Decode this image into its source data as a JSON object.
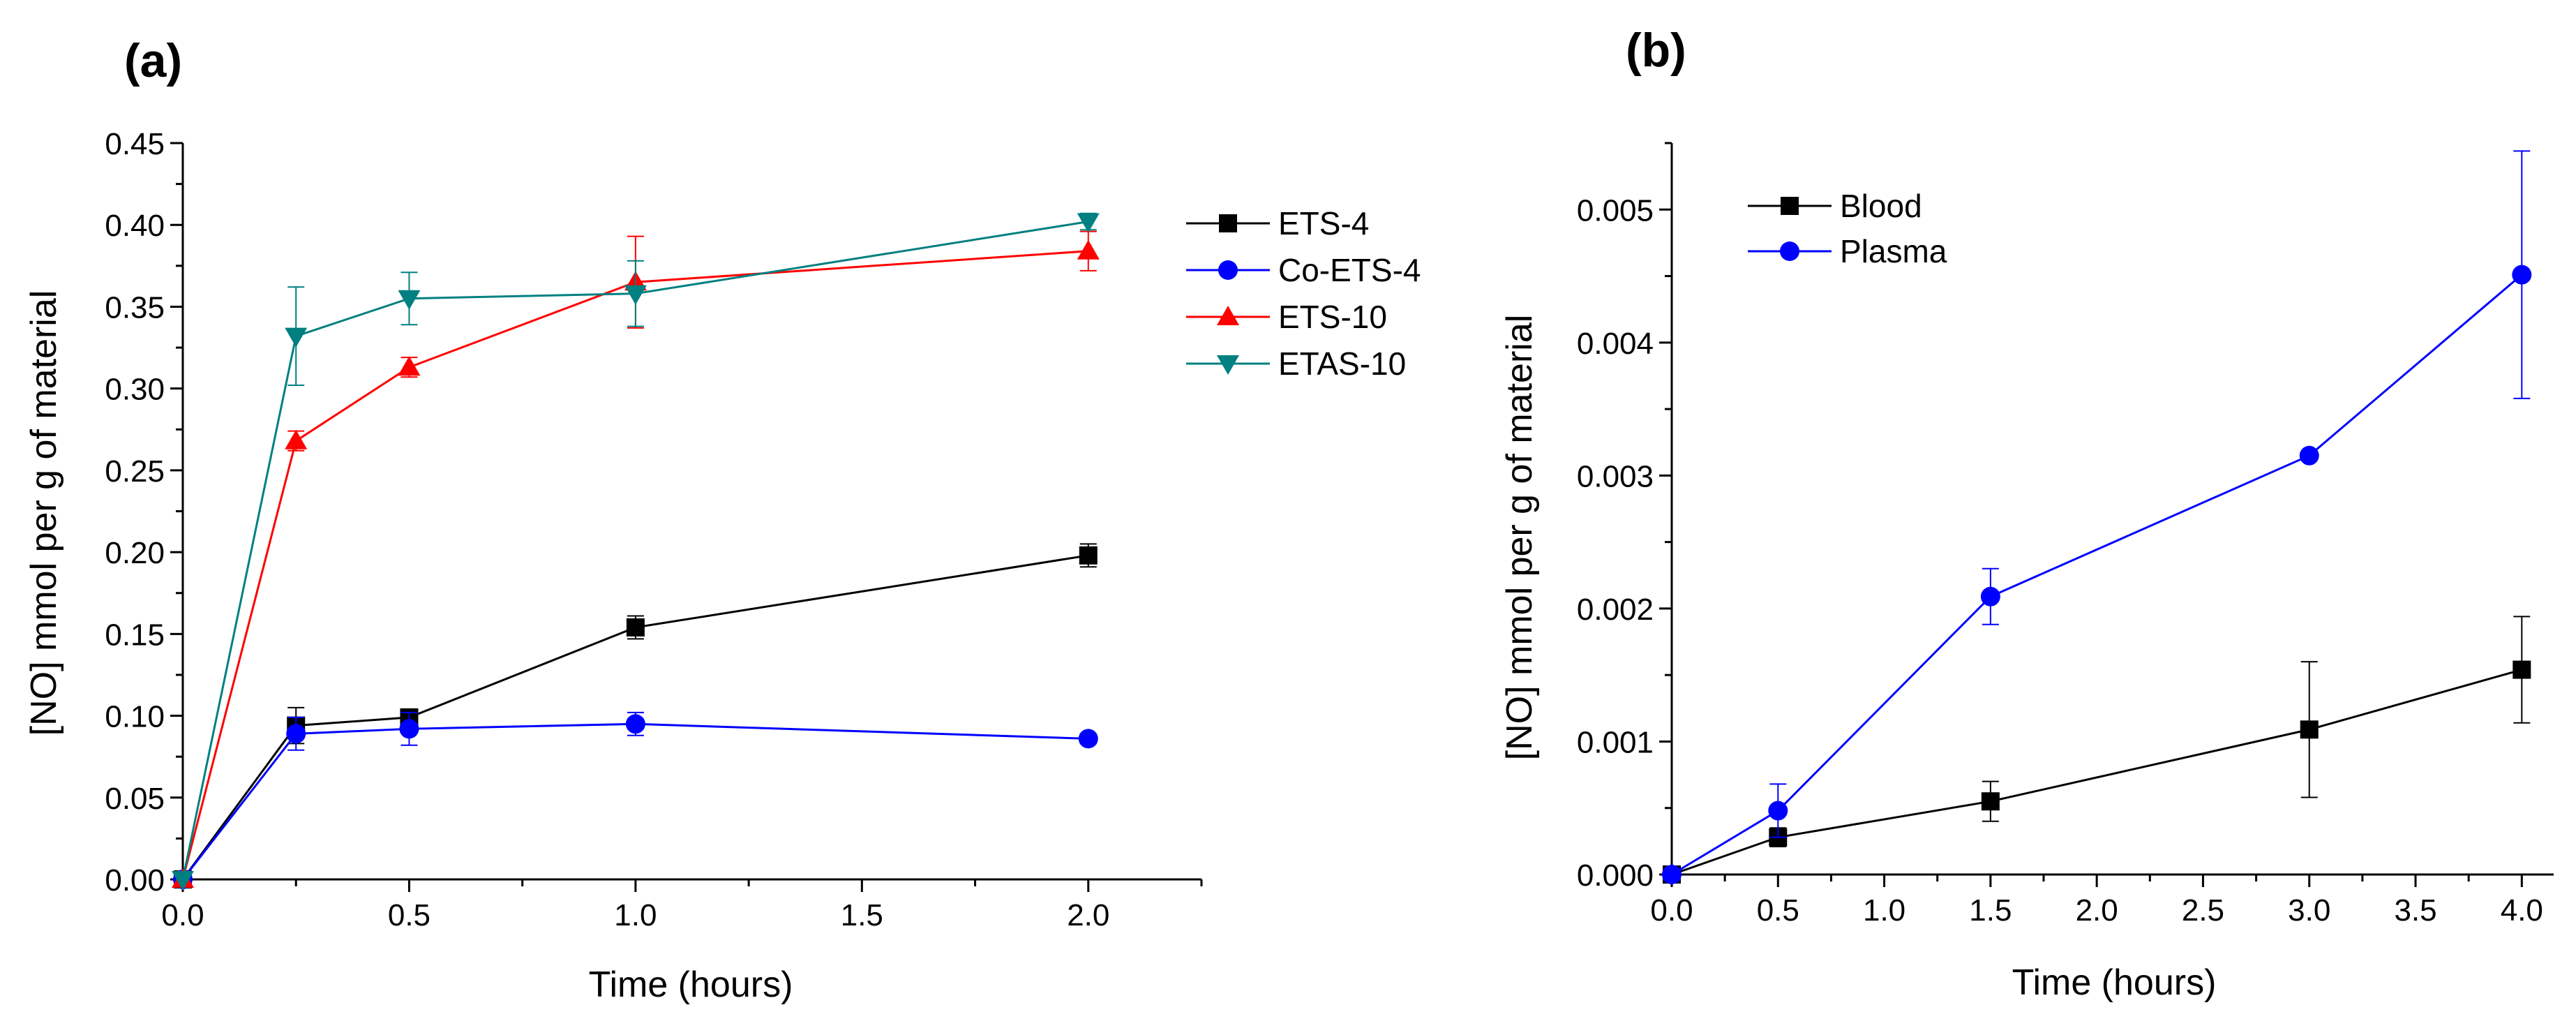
{
  "chart_data": [
    {
      "panel_label": "(a)",
      "type": "line",
      "xlabel": "Time (hours)",
      "ylabel": "[NO] mmol per g of material",
      "xlim": [
        0,
        2.25
      ],
      "ylim": [
        0,
        0.45
      ],
      "xticks": [
        "0.0",
        "0.5",
        "1.0",
        "1.5",
        "2.0"
      ],
      "yticks": [
        "0.00",
        "0.05",
        "0.10",
        "0.15",
        "0.20",
        "0.25",
        "0.30",
        "0.35",
        "0.40",
        "0.45"
      ],
      "legend_position": "right",
      "series": [
        {
          "name": "ETS-4",
          "color": "#000000",
          "marker": "square",
          "x": [
            0,
            0.25,
            0.5,
            1.0,
            2.0
          ],
          "y": [
            0,
            0.094,
            0.099,
            0.154,
            0.198
          ],
          "err": [
            0,
            0.011,
            0.004,
            0.007,
            0.007
          ]
        },
        {
          "name": "Co-ETS-4",
          "color": "#0000ff",
          "marker": "circle",
          "x": [
            0,
            0.25,
            0.5,
            1.0,
            2.0
          ],
          "y": [
            0,
            0.089,
            0.092,
            0.095,
            0.086
          ],
          "err": [
            0,
            0.01,
            0.01,
            0.007,
            0.003
          ]
        },
        {
          "name": "ETS-10",
          "color": "#ff0000",
          "marker": "triangle-up",
          "x": [
            0,
            0.25,
            0.5,
            1.0,
            2.0
          ],
          "y": [
            0,
            0.268,
            0.313,
            0.365,
            0.384
          ],
          "err": [
            0,
            0.006,
            0.006,
            0.028,
            0.012
          ]
        },
        {
          "name": "ETAS-10",
          "color": "#008080",
          "marker": "triangle-down",
          "x": [
            0,
            0.25,
            0.5,
            1.0,
            2.0
          ],
          "y": [
            0,
            0.332,
            0.355,
            0.358,
            0.402
          ],
          "err": [
            0,
            0.03,
            0.016,
            0.02,
            0.005
          ]
        }
      ]
    },
    {
      "panel_label": "(b)",
      "type": "line",
      "xlabel": "Time (hours)",
      "ylabel": "[NO] mmol per g of material",
      "xlim": [
        0,
        4.15
      ],
      "ylim": [
        0,
        0.0055
      ],
      "xticks": [
        "0.0",
        "0.5",
        "1.0",
        "1.5",
        "2.0",
        "2.5",
        "3.0",
        "3.5",
        "4.0"
      ],
      "yticks": [
        "0.000",
        "0.001",
        "0.002",
        "0.003",
        "0.004",
        "0.005"
      ],
      "legend_position": "top-left",
      "series": [
        {
          "name": "Blood",
          "color": "#000000",
          "marker": "square",
          "x": [
            0,
            0.5,
            1.5,
            3.0,
            4.0
          ],
          "y": [
            0,
            0.00028,
            0.00055,
            0.00109,
            0.00154
          ],
          "err": [
            0,
            7e-05,
            0.00015,
            0.00051,
            0.0004
          ]
        },
        {
          "name": "Plasma",
          "color": "#0000ff",
          "marker": "circle",
          "x": [
            0,
            0.5,
            1.5,
            3.0,
            4.0
          ],
          "y": [
            0,
            0.00048,
            0.00209,
            0.00315,
            0.00451
          ],
          "err": [
            0,
            0.0002,
            0.00021,
            3e-05,
            0.00093
          ]
        }
      ]
    }
  ]
}
